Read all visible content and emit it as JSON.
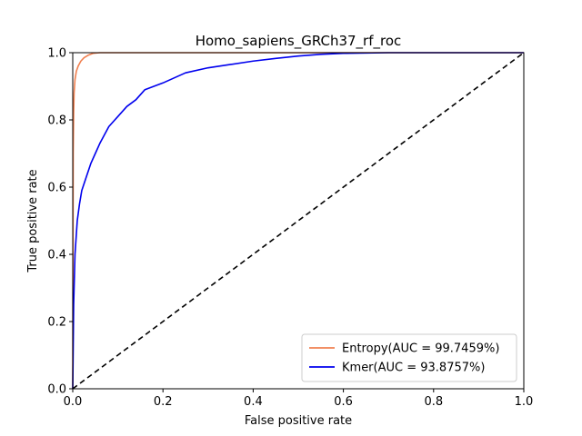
{
  "chart_data": {
    "type": "line",
    "title": "Homo_sapiens_GRCh37_rf_roc",
    "xlabel": "False positive rate",
    "ylabel": "True positive rate",
    "xlim": [
      0,
      1
    ],
    "ylim": [
      0,
      1
    ],
    "xticks": [
      "0.0",
      "0.2",
      "0.4",
      "0.6",
      "0.8",
      "1.0"
    ],
    "yticks": [
      "0.0",
      "0.2",
      "0.4",
      "0.6",
      "0.8",
      "1.0"
    ],
    "grid": false,
    "legend_position": "lower-right",
    "series": [
      {
        "name": "Entropy(AUC = 99.7459%)",
        "color": "#f08050",
        "x": [
          0,
          0.001,
          0.002,
          0.003,
          0.005,
          0.008,
          0.012,
          0.018,
          0.025,
          0.035,
          0.045,
          0.06,
          0.1,
          0.3,
          0.6,
          1.0
        ],
        "y": [
          0,
          0.7,
          0.82,
          0.88,
          0.92,
          0.945,
          0.96,
          0.975,
          0.985,
          0.993,
          0.998,
          1.0,
          1.0,
          1.0,
          1.0,
          1.0
        ]
      },
      {
        "name": "Kmer(AUC = 93.8757%)",
        "color": "#0000ee",
        "x": [
          0,
          0.002,
          0.005,
          0.01,
          0.015,
          0.02,
          0.03,
          0.04,
          0.05,
          0.06,
          0.08,
          0.1,
          0.12,
          0.14,
          0.16,
          0.2,
          0.25,
          0.3,
          0.35,
          0.4,
          0.45,
          0.5,
          0.55,
          0.6,
          0.7,
          0.8,
          1.0
        ],
        "y": [
          0,
          0.25,
          0.4,
          0.5,
          0.55,
          0.59,
          0.63,
          0.67,
          0.7,
          0.73,
          0.78,
          0.81,
          0.84,
          0.86,
          0.89,
          0.91,
          0.94,
          0.955,
          0.965,
          0.975,
          0.983,
          0.99,
          0.995,
          0.998,
          1.0,
          1.0,
          1.0
        ]
      },
      {
        "name": "",
        "color": "#000000",
        "dashed": true,
        "x": [
          0,
          1
        ],
        "y": [
          0,
          1
        ]
      }
    ]
  }
}
